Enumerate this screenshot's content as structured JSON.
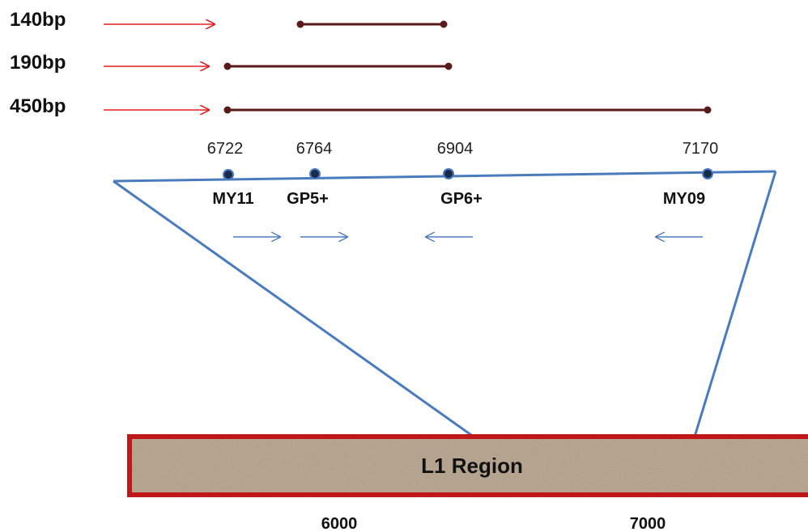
{
  "amplicons": [
    {
      "label": "140bp"
    },
    {
      "label": "190bp"
    },
    {
      "label": "450bp"
    }
  ],
  "primers": [
    {
      "position": "6722",
      "name": "MY11",
      "direction": "forward"
    },
    {
      "position": "6764",
      "name": "GP5+",
      "direction": "forward"
    },
    {
      "position": "6904",
      "name": "GP6+",
      "direction": "reverse"
    },
    {
      "position": "7170",
      "name": "MY09",
      "direction": "reverse"
    }
  ],
  "region": {
    "label": "L1 Region"
  },
  "scale": {
    "ticks": [
      "6000",
      "7000"
    ]
  },
  "colors": {
    "arrow_red": "#e02020",
    "amplicon_line": "#5a1a1a",
    "zoom_line": "#4a7bbf",
    "primer_dot": "#1a2a4a",
    "primer_arrow": "#4a7bbf",
    "region_border": "#c01818",
    "region_fill": "#b8a690"
  }
}
